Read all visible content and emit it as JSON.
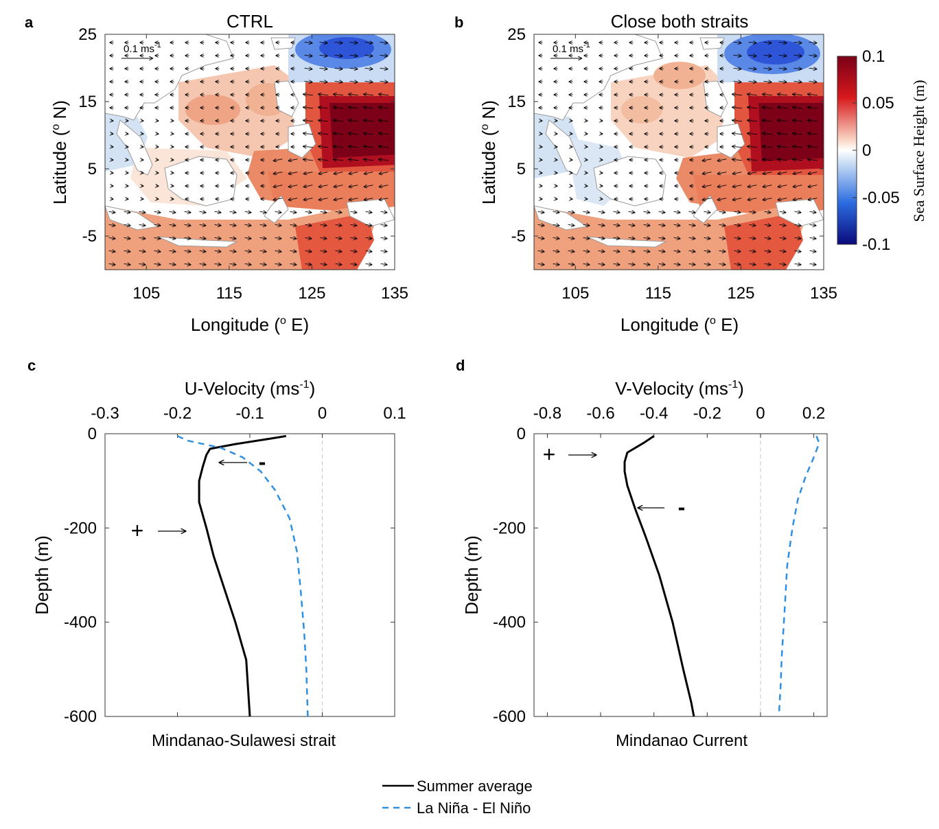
{
  "panels": {
    "a": {
      "letter": "a",
      "title": "CTRL"
    },
    "b": {
      "letter": "b",
      "title": "Close both straits"
    },
    "c": {
      "letter": "c"
    },
    "d": {
      "letter": "d"
    }
  },
  "maps": {
    "xlabel": "Longitude",
    "xunit": "E",
    "ylabel": "Latitude",
    "yunit": "N",
    "deg": "o",
    "xticks": [
      "105",
      "115",
      "125",
      "135"
    ],
    "yticks": [
      "25",
      "15",
      "5",
      "-5"
    ],
    "scale_label": "0.1 ms",
    "scale_sup": "-1"
  },
  "colorbar": {
    "label": "Sea Surface Height (m)",
    "ticks": [
      "0.1",
      "0.05",
      "0",
      "-0.05",
      "-0.1"
    ],
    "colors": [
      "#7a0018",
      "#d7191c",
      "#fbdac8",
      "#ffffff",
      "#cfe1f5",
      "#2b6ce0",
      "#0a0a7a"
    ]
  },
  "labels": {
    "c_axis_title": "U-Velocity (ms",
    "d_axis_title": "V-Velocity (ms",
    "sup": "-1",
    "depth_label": "Depth (m)",
    "c_caption": "Mindanao-Sulawesi strait",
    "d_caption": "Mindanao Current",
    "plus": "+",
    "minus": "-"
  },
  "legend": {
    "items": [
      {
        "label": "Summer average",
        "color": "#000000",
        "style": "solid"
      },
      {
        "label": "La Niña - El Niño",
        "color": "#2e8fe0",
        "style": "dashed"
      }
    ]
  },
  "chart_data": [
    {
      "id": "c",
      "type": "line",
      "xlabel": "U-Velocity (ms-1)",
      "ylabel": "Depth (m)",
      "xlim": [
        -0.3,
        0.1
      ],
      "ylim": [
        -600,
        0
      ],
      "xticks": [
        -0.3,
        -0.2,
        -0.1,
        0,
        0.1
      ],
      "yticks": [
        0,
        -200,
        -400,
        -600
      ],
      "xtick_labels": [
        "-0.3",
        "-0.2",
        "-0.1",
        "0",
        "0.1"
      ],
      "ytick_labels": [
        "0",
        "-200",
        "-400",
        "-600"
      ],
      "series": [
        {
          "name": "Summer average",
          "color": "#000000",
          "dash": false,
          "points": [
            [
              -0.05,
              -5
            ],
            [
              -0.07,
              -10
            ],
            [
              -0.12,
              -22
            ],
            [
              -0.155,
              -32
            ],
            [
              -0.16,
              -45
            ],
            [
              -0.165,
              -70
            ],
            [
              -0.17,
              -100
            ],
            [
              -0.17,
              -145
            ],
            [
              -0.16,
              -200
            ],
            [
              -0.15,
              -260
            ],
            [
              -0.135,
              -330
            ],
            [
              -0.12,
              -400
            ],
            [
              -0.105,
              -480
            ],
            [
              -0.1,
              -600
            ]
          ]
        },
        {
          "name": "La Niña - El Niño",
          "color": "#2e8fe0",
          "dash": true,
          "points": [
            [
              -0.2,
              -5
            ],
            [
              -0.185,
              -15
            ],
            [
              -0.14,
              -30
            ],
            [
              -0.11,
              -50
            ],
            [
              -0.085,
              -80
            ],
            [
              -0.065,
              -120
            ],
            [
              -0.045,
              -180
            ],
            [
              -0.035,
              -250
            ],
            [
              -0.03,
              -330
            ],
            [
              -0.025,
              -420
            ],
            [
              -0.022,
              -500
            ],
            [
              -0.02,
              -600
            ]
          ]
        }
      ]
    },
    {
      "id": "d",
      "type": "line",
      "xlabel": "V-Velocity (ms-1)",
      "ylabel": "Depth (m)",
      "xlim": [
        -0.85,
        0.25
      ],
      "ylim": [
        -600,
        0
      ],
      "xticks": [
        -0.8,
        -0.6,
        -0.4,
        -0.2,
        0,
        0.2
      ],
      "yticks": [
        0,
        -200,
        -400,
        -600
      ],
      "xtick_labels": [
        "-0.8",
        "-0.6",
        "-0.4",
        "-0.2",
        "0",
        "0.2"
      ],
      "ytick_labels": [
        "0",
        "-200",
        "-400",
        "-600"
      ],
      "series": [
        {
          "name": "Summer average",
          "color": "#000000",
          "dash": false,
          "points": [
            [
              -0.4,
              -5
            ],
            [
              -0.44,
              -20
            ],
            [
              -0.5,
              -40
            ],
            [
              -0.51,
              -60
            ],
            [
              -0.51,
              -80
            ],
            [
              -0.5,
              -110
            ],
            [
              -0.47,
              -160
            ],
            [
              -0.43,
              -220
            ],
            [
              -0.38,
              -300
            ],
            [
              -0.33,
              -400
            ],
            [
              -0.29,
              -500
            ],
            [
              -0.26,
              -570
            ],
            [
              -0.25,
              -600
            ]
          ]
        },
        {
          "name": "La Niña - El Niño",
          "color": "#2e8fe0",
          "dash": true,
          "points": [
            [
              0.21,
              -5
            ],
            [
              0.22,
              -20
            ],
            [
              0.2,
              -50
            ],
            [
              0.17,
              -90
            ],
            [
              0.14,
              -140
            ],
            [
              0.12,
              -200
            ],
            [
              0.1,
              -280
            ],
            [
              0.09,
              -380
            ],
            [
              0.08,
              -470
            ],
            [
              0.075,
              -540
            ],
            [
              0.07,
              -590
            ]
          ]
        }
      ]
    }
  ]
}
